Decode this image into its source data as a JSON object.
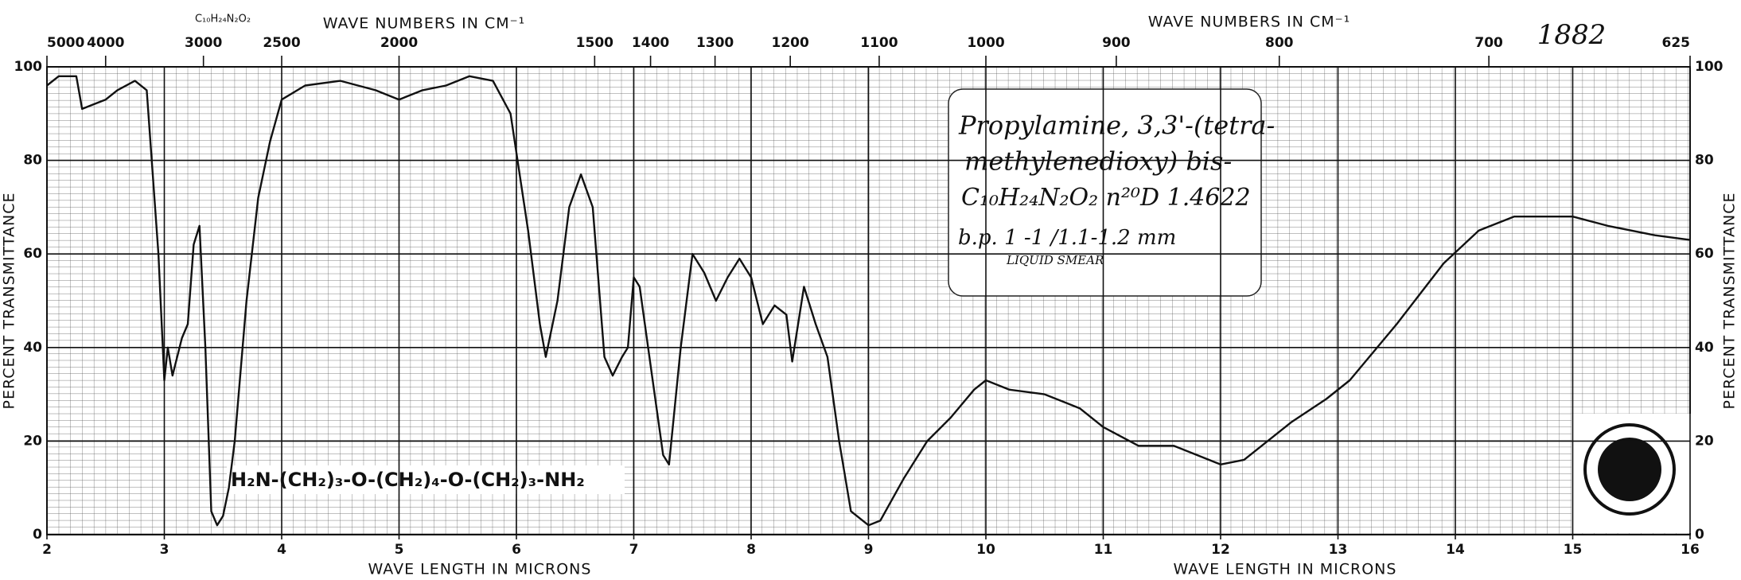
{
  "chart_data": {
    "type": "line",
    "color": "#111111",
    "grid": true,
    "top_axis_labels": [
      "WAVE NUMBERS IN CM⁻¹",
      "WAVE NUMBERS IN CM⁻¹"
    ],
    "bottom_axis_labels": [
      "WAVE LENGTH IN MICRONS",
      "WAVE LENGTH IN MICRONS"
    ],
    "y_axis_labels": [
      "PERCENT TRANSMITTANCE",
      "PERCENT TRANSMITTANCE"
    ],
    "spectrum_number": "1882",
    "header_formula": "C₁₀H₂₄N₂O₂",
    "note": [
      "Propylamine, 3,3'-(tetra-",
      "methylenedioxy) bis-",
      "C₁₀H₂₄N₂O₂   n²⁰D 1.4622",
      "b.p. 1 -1 /1.1-1.2 mm",
      "LIQUID SMEAR"
    ],
    "structure": "H₂N-(CH₂)₃-O-(CH₂)₄-O-(CH₂)₃-NH₂",
    "xlim": [
      2,
      16
    ],
    "xticks": [
      2,
      3,
      4,
      5,
      6,
      7,
      8,
      9,
      10,
      11,
      12,
      13,
      14,
      15,
      16
    ],
    "x2ticks": [
      5000,
      4000,
      3000,
      2500,
      2000,
      1500,
      1400,
      1300,
      1200,
      1100,
      1000,
      900,
      800,
      700,
      625
    ],
    "ylim": [
      0,
      100
    ],
    "yticks": [
      0,
      20,
      40,
      60,
      80,
      100
    ],
    "x": [
      2.0,
      2.1,
      2.25,
      2.3,
      2.4,
      2.5,
      2.6,
      2.75,
      2.85,
      2.95,
      3.0,
      3.03,
      3.07,
      3.15,
      3.2,
      3.25,
      3.3,
      3.35,
      3.4,
      3.45,
      3.5,
      3.55,
      3.6,
      3.7,
      3.8,
      3.9,
      4.0,
      4.2,
      4.5,
      4.8,
      5.0,
      5.2,
      5.4,
      5.6,
      5.8,
      5.95,
      6.1,
      6.2,
      6.25,
      6.35,
      6.45,
      6.55,
      6.65,
      6.75,
      6.82,
      6.9,
      6.95,
      7.0,
      7.05,
      7.15,
      7.25,
      7.3,
      7.4,
      7.5,
      7.6,
      7.7,
      7.8,
      7.9,
      8.0,
      8.1,
      8.2,
      8.3,
      8.35,
      8.45,
      8.55,
      8.65,
      8.75,
      8.85,
      9.0,
      9.1,
      9.3,
      9.5,
      9.7,
      9.9,
      10.0,
      10.2,
      10.5,
      10.8,
      11.0,
      11.3,
      11.6,
      12.0,
      12.2,
      12.6,
      12.9,
      13.1,
      13.5,
      13.9,
      14.2,
      14.5,
      15.0,
      15.3,
      15.7,
      16.0
    ],
    "values": [
      96,
      98,
      98,
      91,
      92,
      93,
      95,
      97,
      95,
      60,
      33,
      40,
      34,
      42,
      45,
      62,
      66,
      40,
      5,
      2,
      4,
      10,
      20,
      50,
      72,
      84,
      93,
      96,
      97,
      95,
      93,
      95,
      96,
      98,
      97,
      90,
      65,
      45,
      38,
      50,
      70,
      77,
      70,
      38,
      34,
      38,
      40,
      55,
      53,
      35,
      17,
      15,
      40,
      60,
      56,
      50,
      55,
      59,
      55,
      45,
      49,
      47,
      37,
      53,
      45,
      38,
      20,
      5,
      2,
      3,
      12,
      20,
      25,
      31,
      33,
      31,
      30,
      27,
      23,
      19,
      19,
      15,
      16,
      24,
      29,
      33,
      45,
      58,
      65,
      68,
      68,
      66,
      64,
      63
    ]
  }
}
